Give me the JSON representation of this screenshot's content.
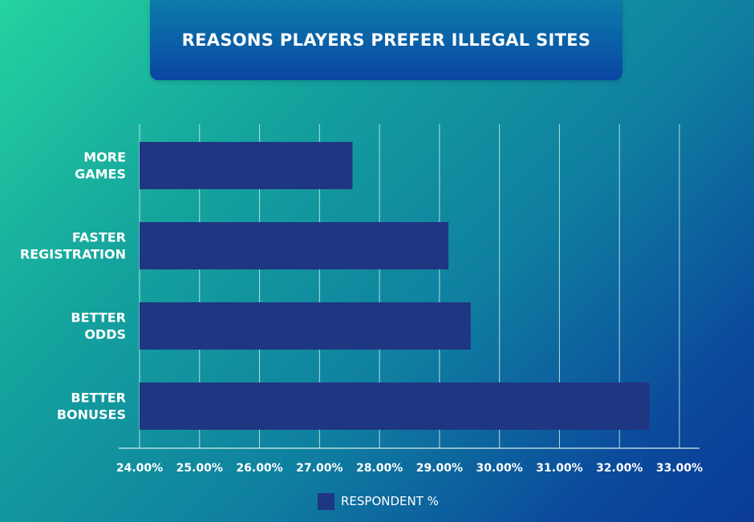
{
  "chart_data": {
    "type": "bar",
    "orientation": "horizontal",
    "title": "REASONS PLAYERS PREFER ILLEGAL SITES",
    "categories": [
      [
        "MORE",
        "GAMES"
      ],
      [
        "FASTER",
        "REGISTRATION"
      ],
      [
        "BETTER",
        "ODDS"
      ],
      [
        "BETTER",
        "BONUSES"
      ]
    ],
    "series": [
      {
        "name": "RESPONDENT %",
        "values": [
          27.55,
          29.15,
          29.52,
          32.5
        ],
        "color": "#1f3682"
      }
    ],
    "xlim": [
      24,
      33
    ],
    "ticks": [
      "24.00%",
      "25.00%",
      "26.00%",
      "27.00%",
      "28.00%",
      "29.00%",
      "30.00%",
      "31.00%",
      "32.00%",
      "33.00%"
    ],
    "tick_values": [
      24,
      25,
      26,
      27,
      28,
      29,
      30,
      31,
      32,
      33
    ],
    "grid": true,
    "legend_position": "bottom-center"
  }
}
